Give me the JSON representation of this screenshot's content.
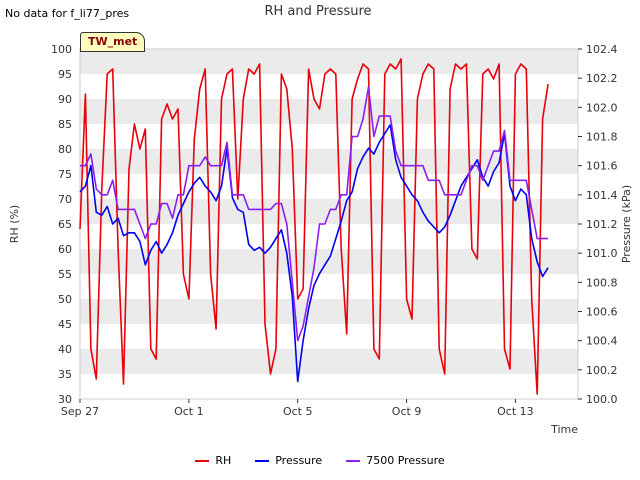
{
  "header": {
    "nodata_text": "No data for f_li77_pres",
    "badge": "TW_met"
  },
  "chart_data": {
    "type": "line",
    "title": "RH and Pressure",
    "xlabel": "Time",
    "ylabel_left": "RH (%)",
    "ylabel_right": "Pressure (kPa)",
    "ylim_left": [
      30,
      100
    ],
    "ylim_right": [
      100.0,
      102.4
    ],
    "yticks_left": [
      "30",
      "35",
      "40",
      "45",
      "50",
      "55",
      "60",
      "65",
      "70",
      "75",
      "80",
      "85",
      "90",
      "95",
      "100"
    ],
    "yticks_right": [
      "100.0",
      "100.2",
      "100.4",
      "100.6",
      "100.8",
      "101.0",
      "101.2",
      "101.4",
      "101.6",
      "101.8",
      "102.0",
      "102.2",
      "102.4"
    ],
    "xlim_days": [
      0,
      18.3
    ],
    "xticks": [
      {
        "label": "Sep 27",
        "day": 0
      },
      {
        "label": "Oct 1",
        "day": 4
      },
      {
        "label": "Oct 5",
        "day": 8
      },
      {
        "label": "Oct 9",
        "day": 12
      },
      {
        "label": "Oct 13",
        "day": 16
      }
    ],
    "grid": true,
    "legend_position": "bottom",
    "series": [
      {
        "name": "RH",
        "axis": "left",
        "color": "#e8000b",
        "x": [
          0.0,
          0.2,
          0.4,
          0.6,
          0.8,
          1.0,
          1.2,
          1.4,
          1.6,
          1.8,
          2.0,
          2.2,
          2.4,
          2.6,
          2.8,
          3.0,
          3.2,
          3.4,
          3.6,
          3.8,
          4.0,
          4.2,
          4.4,
          4.6,
          4.8,
          5.0,
          5.2,
          5.4,
          5.6,
          5.8,
          6.0,
          6.2,
          6.4,
          6.6,
          6.8,
          7.0,
          7.2,
          7.4,
          7.6,
          7.8,
          8.0,
          8.2,
          8.4,
          8.6,
          8.8,
          9.0,
          9.2,
          9.4,
          9.6,
          9.8,
          10.0,
          10.2,
          10.4,
          10.6,
          10.8,
          11.0,
          11.2,
          11.4,
          11.6,
          11.8,
          12.0,
          12.2,
          12.4,
          12.6,
          12.8,
          13.0,
          13.2,
          13.4,
          13.6,
          13.8,
          14.0,
          14.2,
          14.4,
          14.6,
          14.8,
          15.0,
          15.2,
          15.4,
          15.6,
          15.8,
          16.0,
          16.2,
          16.4,
          16.6,
          16.8,
          17.0,
          17.2
        ],
        "values": [
          64,
          91,
          40,
          34,
          72,
          95,
          96,
          60,
          33,
          76,
          85,
          80,
          84,
          40,
          38,
          86,
          89,
          86,
          88,
          55,
          50,
          82,
          92,
          96,
          55,
          44,
          90,
          95,
          96,
          70,
          90,
          96,
          95,
          97,
          45,
          35,
          40,
          95,
          92,
          80,
          50,
          52,
          96,
          90,
          88,
          95,
          96,
          95,
          60,
          43,
          90,
          94,
          97,
          96,
          40,
          38,
          95,
          97,
          96,
          98,
          50,
          46,
          90,
          95,
          97,
          96,
          40,
          35,
          92,
          97,
          96,
          97,
          60,
          58,
          95,
          96,
          94,
          97,
          40,
          36,
          95,
          97,
          96,
          50,
          31,
          86,
          93
        ]
      },
      {
        "name": "Pressure",
        "axis": "right",
        "color": "#0000ee",
        "x": [
          0.0,
          0.2,
          0.4,
          0.6,
          0.8,
          1.0,
          1.2,
          1.4,
          1.6,
          1.8,
          2.0,
          2.2,
          2.4,
          2.6,
          2.8,
          3.0,
          3.2,
          3.4,
          3.6,
          3.8,
          4.0,
          4.2,
          4.4,
          4.6,
          4.8,
          5.0,
          5.2,
          5.4,
          5.6,
          5.8,
          6.0,
          6.2,
          6.4,
          6.6,
          6.8,
          7.0,
          7.2,
          7.4,
          7.6,
          7.8,
          8.0,
          8.2,
          8.4,
          8.6,
          8.8,
          9.0,
          9.2,
          9.4,
          9.6,
          9.8,
          10.0,
          10.2,
          10.4,
          10.6,
          10.8,
          11.0,
          11.2,
          11.4,
          11.6,
          11.8,
          12.0,
          12.2,
          12.4,
          12.6,
          12.8,
          13.0,
          13.2,
          13.4,
          13.6,
          13.8,
          14.0,
          14.2,
          14.4,
          14.6,
          14.8,
          15.0,
          15.2,
          15.4,
          15.6,
          15.8,
          16.0,
          16.2,
          16.4,
          16.6,
          16.8,
          17.0,
          17.2
        ],
        "values": [
          101.42,
          101.46,
          101.6,
          101.28,
          101.26,
          101.32,
          101.2,
          101.24,
          101.12,
          101.14,
          101.14,
          101.08,
          100.92,
          101.02,
          101.08,
          101.0,
          101.06,
          101.14,
          101.26,
          101.34,
          101.42,
          101.48,
          101.52,
          101.46,
          101.42,
          101.36,
          101.46,
          101.72,
          101.38,
          101.3,
          101.28,
          101.06,
          101.02,
          101.04,
          101.0,
          101.04,
          101.1,
          101.16,
          101.0,
          100.7,
          100.12,
          100.4,
          100.62,
          100.78,
          100.86,
          100.92,
          100.98,
          101.1,
          101.22,
          101.36,
          101.42,
          101.58,
          101.66,
          101.72,
          101.68,
          101.76,
          101.82,
          101.88,
          101.64,
          101.52,
          101.46,
          101.4,
          101.36,
          101.28,
          101.22,
          101.18,
          101.14,
          101.18,
          101.26,
          101.36,
          101.46,
          101.52,
          101.58,
          101.64,
          101.52,
          101.46,
          101.56,
          101.62,
          101.82,
          101.46,
          101.36,
          101.44,
          101.4,
          101.1,
          100.94,
          100.84,
          100.9
        ]
      },
      {
        "name": "7500 Pressure",
        "axis": "right",
        "color": "#8c1ef2",
        "x": [
          0.0,
          0.2,
          0.4,
          0.6,
          0.8,
          1.0,
          1.2,
          1.4,
          1.6,
          1.8,
          2.0,
          2.2,
          2.4,
          2.6,
          2.8,
          3.0,
          3.2,
          3.4,
          3.6,
          3.8,
          4.0,
          4.2,
          4.4,
          4.6,
          4.8,
          5.0,
          5.2,
          5.4,
          5.6,
          5.8,
          6.0,
          6.2,
          6.4,
          6.6,
          6.8,
          7.0,
          7.2,
          7.4,
          7.6,
          7.8,
          8.0,
          8.2,
          8.4,
          8.6,
          8.8,
          9.0,
          9.2,
          9.4,
          9.6,
          9.8,
          10.0,
          10.2,
          10.4,
          10.6,
          10.8,
          11.0,
          11.2,
          11.4,
          11.6,
          11.8,
          12.0,
          12.2,
          12.4,
          12.6,
          12.8,
          13.0,
          13.2,
          13.4,
          13.6,
          13.8,
          14.0,
          14.2,
          14.4,
          14.6,
          14.8,
          15.0,
          15.2,
          15.4,
          15.6,
          15.8,
          16.0,
          16.2,
          16.4,
          16.6,
          16.8,
          17.0,
          17.2
        ],
        "values": [
          101.6,
          101.6,
          101.68,
          101.44,
          101.4,
          101.4,
          101.5,
          101.3,
          101.3,
          101.3,
          101.3,
          101.2,
          101.1,
          101.2,
          101.2,
          101.34,
          101.34,
          101.24,
          101.4,
          101.4,
          101.6,
          101.6,
          101.6,
          101.66,
          101.6,
          101.6,
          101.6,
          101.76,
          101.4,
          101.4,
          101.4,
          101.3,
          101.3,
          101.3,
          101.3,
          101.3,
          101.34,
          101.34,
          101.2,
          100.8,
          100.4,
          100.5,
          100.7,
          100.9,
          101.2,
          101.2,
          101.3,
          101.3,
          101.4,
          101.4,
          101.8,
          101.8,
          101.92,
          102.14,
          101.8,
          101.94,
          101.94,
          101.94,
          101.7,
          101.6,
          101.6,
          101.6,
          101.6,
          101.6,
          101.5,
          101.5,
          101.5,
          101.4,
          101.4,
          101.4,
          101.4,
          101.5,
          101.6,
          101.6,
          101.5,
          101.6,
          101.7,
          101.7,
          101.84,
          101.5,
          101.5,
          101.5,
          101.5,
          101.3,
          101.1,
          101.1,
          101.1
        ]
      }
    ]
  }
}
